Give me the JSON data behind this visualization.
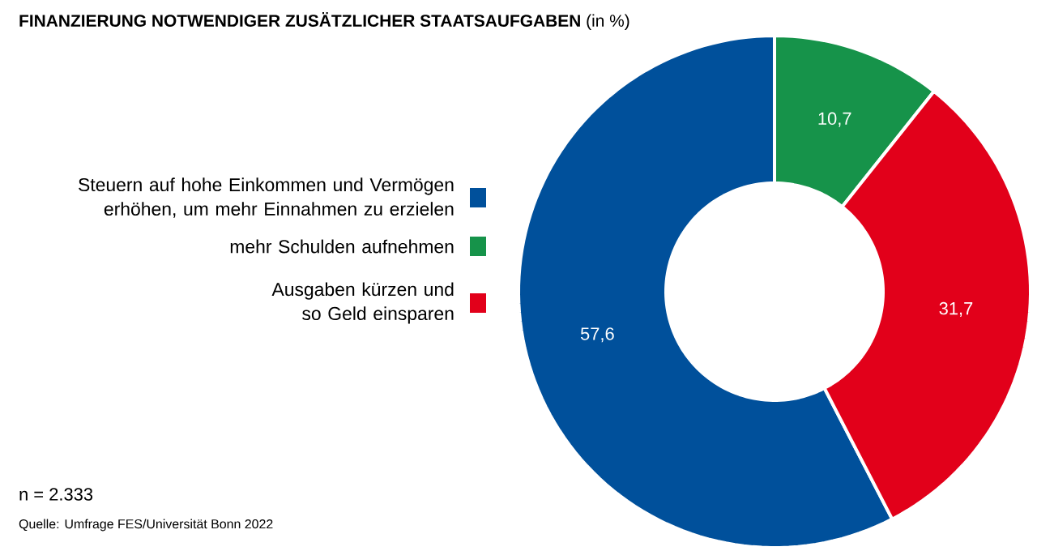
{
  "chart_data": {
    "type": "donut",
    "title": "**FINANZIERUNG NOTWENDIGER ZUSÄTZLICHER STAATSAUFGABEN** (in %)",
    "categories": [
      "Steuern auf hohe Einkommen und Vermögen erhöhen, um mehr Einnahmen zu erzielen",
      "mehr Schulden aufnehmen",
      "Ausgaben kürzen und so Geld einsparen"
    ],
    "values": [
      57.6,
      10.7,
      31.7
    ],
    "value_labels": [
      "57,6",
      "10,7",
      "31,7"
    ],
    "colors": [
      "#00509b",
      "#16934a",
      "#e2001a"
    ],
    "legend": "left",
    "annotations": [
      "n = 2.333",
      "Quelle: Umfrage FES/Universität Bonn 2022"
    ]
  }
}
